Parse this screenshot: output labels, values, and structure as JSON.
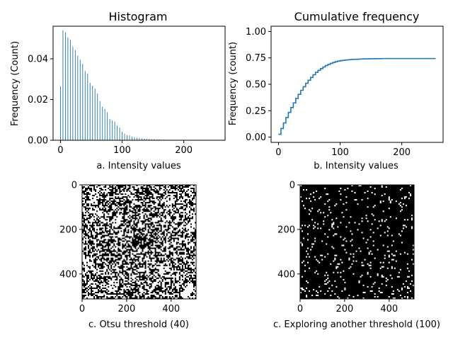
{
  "chart_data": [
    {
      "type": "bar",
      "title": "Histogram",
      "xlabel": "a. Intensity values",
      "ylabel": "Frequency (Count)",
      "xlim": [
        -12,
        267
      ],
      "ylim": [
        0,
        0.056
      ],
      "xticks": [
        0,
        100,
        200
      ],
      "yticks": [
        0.0,
        0.02,
        0.04
      ],
      "ytick_labels": [
        "0.00",
        "0.02",
        "0.04"
      ],
      "bar_color": "#1f77b4",
      "x": [
        0,
        4,
        8,
        12,
        16,
        20,
        24,
        28,
        32,
        36,
        40,
        44,
        48,
        52,
        56,
        60,
        64,
        68,
        72,
        76,
        80,
        84,
        88,
        92,
        96,
        100,
        104,
        108,
        112,
        116,
        120,
        124,
        128,
        132,
        136,
        140,
        144,
        148,
        152,
        156,
        160,
        164,
        168,
        172,
        176,
        180,
        184,
        188,
        192,
        196,
        200,
        204,
        208,
        212,
        216,
        220,
        224,
        228,
        232,
        236,
        240,
        244,
        248,
        252,
        255
      ],
      "values": [
        0.0265,
        0.054,
        0.053,
        0.0505,
        0.0493,
        0.046,
        0.0443,
        0.0415,
        0.0395,
        0.0375,
        0.034,
        0.0327,
        0.0282,
        0.0268,
        0.0253,
        0.023,
        0.0192,
        0.0165,
        0.0153,
        0.0138,
        0.0105,
        0.0098,
        0.0092,
        0.0073,
        0.0062,
        0.0042,
        0.0032,
        0.0025,
        0.0024,
        0.0018,
        0.0015,
        0.0012,
        0.0011,
        0.0009,
        0.0008,
        0.0007,
        0.0006,
        0.0005,
        0.0005,
        0.0004,
        0.0004,
        0.0003,
        0.0003,
        0.0002,
        0.0002,
        0.0001,
        0.0001,
        0.0001,
        0.0001,
        0.0001,
        0.0001,
        0.0001,
        0,
        0,
        0,
        0,
        0,
        0,
        0,
        0,
        0,
        0,
        0,
        0,
        0
      ]
    },
    {
      "type": "line",
      "title": "Cumulative frequency",
      "xlabel": "b. Intensity values",
      "ylabel": "Frequency (count)",
      "xlim": [
        -12,
        267
      ],
      "ylim": [
        -0.05,
        1.05
      ],
      "xticks": [
        0,
        100,
        200
      ],
      "yticks": [
        0.0,
        0.25,
        0.5,
        0.75,
        1.0
      ],
      "ytick_labels": [
        "0.00",
        "0.25",
        "0.50",
        "0.75",
        "1.00"
      ],
      "line_color": "#1f77b4",
      "x": [
        0,
        4,
        8,
        12,
        16,
        20,
        24,
        28,
        32,
        36,
        40,
        44,
        48,
        52,
        56,
        60,
        64,
        68,
        72,
        76,
        80,
        84,
        88,
        92,
        96,
        100,
        104,
        108,
        112,
        116,
        120,
        124,
        128,
        132,
        136,
        140,
        144,
        148,
        152,
        156,
        160,
        164,
        168,
        172,
        176,
        180,
        184,
        188,
        192,
        196,
        200,
        204,
        208,
        212,
        216,
        220,
        224,
        228,
        232,
        236,
        240,
        244,
        248,
        252,
        255
      ],
      "values": [
        0.027,
        0.081,
        0.134,
        0.185,
        0.234,
        0.28,
        0.324,
        0.366,
        0.405,
        0.443,
        0.477,
        0.51,
        0.538,
        0.565,
        0.59,
        0.613,
        0.632,
        0.649,
        0.664,
        0.678,
        0.688,
        0.698,
        0.707,
        0.714,
        0.72,
        0.724,
        0.727,
        0.73,
        0.732,
        0.734,
        0.736,
        0.737,
        0.738,
        0.739,
        0.74,
        0.741,
        0.741,
        0.742,
        0.742,
        0.743,
        0.743,
        0.743,
        0.744,
        0.744,
        0.744,
        0.744,
        0.744,
        0.744,
        0.744,
        0.744,
        0.744,
        0.744,
        0.744,
        0.744,
        0.744,
        0.744,
        0.744,
        0.744,
        0.744,
        0.744,
        0.744,
        0.744,
        0.744,
        0.744,
        0.744
      ]
    },
    {
      "type": "heatmap",
      "title": "",
      "xlabel": "c. Otsu threshold (40)",
      "ylabel": "",
      "xlim": [
        0,
        512
      ],
      "ylim": [
        512,
        0
      ],
      "xticks": [
        0,
        200,
        400
      ],
      "yticks": [
        0,
        200,
        400
      ],
      "white_density": 0.5,
      "colors": [
        "#000000",
        "#ffffff"
      ]
    },
    {
      "type": "heatmap",
      "title": "",
      "xlabel": "c. Exploring another threshold (100)",
      "ylabel": "",
      "xlim": [
        0,
        512
      ],
      "ylim": [
        512,
        0
      ],
      "xticks": [
        0,
        200,
        400
      ],
      "yticks": [
        0,
        200,
        400
      ],
      "white_density": 0.07,
      "colors": [
        "#000000",
        "#ffffff"
      ]
    }
  ]
}
